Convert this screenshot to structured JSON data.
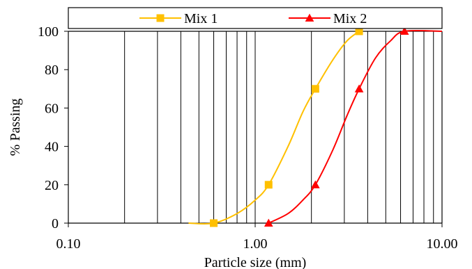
{
  "chart_data": {
    "type": "line",
    "xscale": "log",
    "xlim": [
      0.1,
      10
    ],
    "ylim": [
      0,
      100
    ],
    "xlabel": "Particle size (mm)",
    "ylabel": "% Passing",
    "x_ticks": [
      0.1,
      1,
      10
    ],
    "x_tick_labels": [
      "0.10",
      "1.00",
      "10.00"
    ],
    "y_ticks": [
      0,
      20,
      40,
      60,
      80,
      100
    ],
    "y_tick_labels": [
      "0",
      "20",
      "40",
      "60",
      "80",
      "100"
    ],
    "grid": "vertical",
    "legend_position": "top",
    "series": [
      {
        "name": "Mix 1",
        "color": "#FFC000",
        "marker": "square",
        "points": [
          {
            "x": 0.6,
            "y": 0
          },
          {
            "x": 1.18,
            "y": 20
          },
          {
            "x": 2.1,
            "y": 70
          },
          {
            "x": 3.6,
            "y": 100
          }
        ],
        "curve": [
          {
            "x": 0.44,
            "y": 0
          },
          {
            "x": 0.6,
            "y": 0
          },
          {
            "x": 0.8,
            "y": 5
          },
          {
            "x": 1.0,
            "y": 12
          },
          {
            "x": 1.18,
            "y": 20
          },
          {
            "x": 1.5,
            "y": 40
          },
          {
            "x": 1.8,
            "y": 58
          },
          {
            "x": 2.1,
            "y": 70
          },
          {
            "x": 2.6,
            "y": 85
          },
          {
            "x": 3.1,
            "y": 95
          },
          {
            "x": 3.6,
            "y": 100
          }
        ]
      },
      {
        "name": "Mix 2",
        "color": "#FF0000",
        "marker": "triangle",
        "points": [
          {
            "x": 1.18,
            "y": 0
          },
          {
            "x": 2.1,
            "y": 20
          },
          {
            "x": 3.6,
            "y": 70
          },
          {
            "x": 6.3,
            "y": 100
          }
        ],
        "curve": [
          {
            "x": 1.18,
            "y": 0
          },
          {
            "x": 1.5,
            "y": 5
          },
          {
            "x": 1.8,
            "y": 12
          },
          {
            "x": 2.1,
            "y": 20
          },
          {
            "x": 2.6,
            "y": 38
          },
          {
            "x": 3.1,
            "y": 56
          },
          {
            "x": 3.6,
            "y": 70
          },
          {
            "x": 4.4,
            "y": 86
          },
          {
            "x": 5.3,
            "y": 95
          },
          {
            "x": 6.3,
            "y": 100
          },
          {
            "x": 10,
            "y": 100
          }
        ]
      }
    ]
  }
}
